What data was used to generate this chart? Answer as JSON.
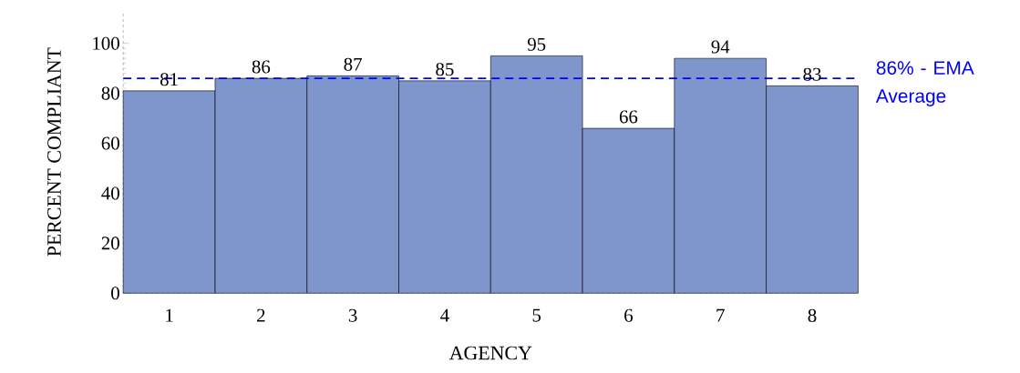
{
  "chart_data": {
    "type": "bar",
    "xlabel": "AGENCY",
    "ylabel": "PERCENT COMPLIANT",
    "categories": [
      "1",
      "2",
      "3",
      "4",
      "5",
      "6",
      "7",
      "8"
    ],
    "values": [
      81,
      86,
      87,
      85,
      95,
      66,
      94,
      83
    ],
    "color": "#7e96cb",
    "ylim": [
      0,
      113
    ],
    "yticks": [
      0,
      20,
      40,
      60,
      80,
      100
    ],
    "data_labels": true,
    "grid": false,
    "ref_lines": [
      {
        "axis": "y",
        "value": 86,
        "label": "86% - EMA Average",
        "color": "#0000ff",
        "line_style": "dashed"
      }
    ]
  }
}
